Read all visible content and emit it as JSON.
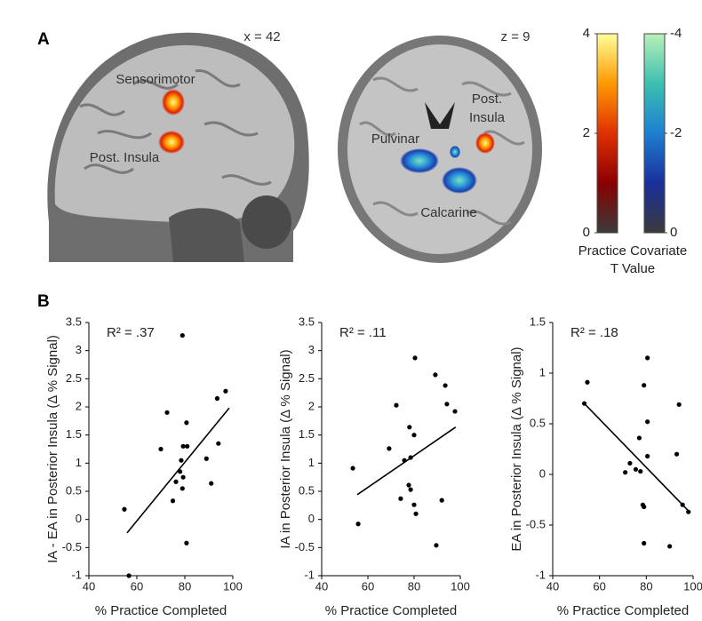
{
  "panel_labels": [
    "A",
    "B"
  ],
  "brain_annotations": {
    "sagittal_slice": "x = 42",
    "sensorimotor": "Sensorimotor",
    "post_insula_sagittal": "Post. Insula",
    "axial_slice": "z = 9",
    "post_insula_axial": [
      "Post.",
      "Insula"
    ],
    "pulvinar": "Pulvinar",
    "calcarine": "Calcarine"
  },
  "colorbar_label": [
    "Practice Covariate",
    "T Value"
  ],
  "chart_data": [
    {
      "type": "colorbar",
      "ylim": [
        0,
        4
      ],
      "yticks": [
        4,
        2,
        0
      ],
      "colors": [
        "#3a3a3a",
        "#8b0000",
        "#e03000",
        "#ff9900",
        "#ffff99"
      ]
    },
    {
      "type": "colorbar",
      "ylim": [
        0,
        -4
      ],
      "yticks": [
        -4,
        -2,
        0
      ],
      "colors": [
        "#3a3a3a",
        "#1a2f9a",
        "#1e7fd0",
        "#3cc0b0",
        "#b8f0b8"
      ]
    },
    {
      "type": "scatter",
      "annotation": "R² = .37",
      "xlabel": "% Practice Completed",
      "ylabel": "IA - EA in Posterior Insula (Δ % Signal)",
      "xlim": [
        40,
        100
      ],
      "xticks": [
        40,
        60,
        80,
        100
      ],
      "ylim": [
        -1,
        3.5
      ],
      "yticks": [
        -1,
        -0.5,
        0,
        0.5,
        1,
        1.5,
        2,
        2.5,
        3,
        3.5
      ],
      "color": "#000000",
      "x": [
        79,
        97,
        93.5,
        72.6,
        80.7,
        70,
        79.3,
        81,
        94,
        78.5,
        89,
        78,
        76.3,
        79.3,
        91,
        79,
        75,
        54.8,
        80.7,
        56.7
      ],
      "y": [
        3.27,
        2.28,
        2.15,
        1.9,
        1.72,
        1.25,
        1.3,
        1.3,
        1.35,
        1.05,
        1.08,
        0.85,
        0.67,
        0.75,
        0.64,
        0.55,
        0.33,
        0.18,
        -0.42,
        -1
      ],
      "trend": {
        "x": [
          55.9,
          98.5
        ],
        "y": [
          -0.24,
          1.98
        ]
      }
    },
    {
      "type": "scatter",
      "annotation": "R² = .11",
      "xlabel": "% Practice Completed",
      "ylabel": "IA in Posterior Insula (Δ % Signal)",
      "xlim": [
        40,
        100
      ],
      "xticks": [
        40,
        60,
        80,
        100
      ],
      "ylim": [
        -1,
        3.5
      ],
      "yticks": [
        -1,
        -0.5,
        0,
        0.5,
        1,
        1.5,
        2,
        2.5,
        3,
        3.5
      ],
      "color": "#000000",
      "x": [
        80.4,
        89.2,
        93.5,
        72.3,
        94.2,
        97.7,
        78,
        80,
        69.2,
        75.8,
        78.5,
        77.7,
        78.5,
        53.5,
        74.2,
        92,
        80,
        80.8,
        55.8,
        89.6
      ],
      "y": [
        2.87,
        2.57,
        2.38,
        2.03,
        2.05,
        1.92,
        1.64,
        1.5,
        1.26,
        1.05,
        1.1,
        0.61,
        0.53,
        0.91,
        0.37,
        0.34,
        0.26,
        0.1,
        -0.08,
        -0.46
      ],
      "trend": {
        "x": [
          55.4,
          98
        ],
        "y": [
          0.44,
          1.64
        ]
      }
    },
    {
      "type": "scatter",
      "annotation": "R² = .18",
      "xlabel": "% Practice Completed",
      "ylabel": "EA in Posterior Insula (Δ % Signal)",
      "xlim": [
        40,
        100
      ],
      "xticks": [
        40,
        60,
        80,
        100
      ],
      "ylim": [
        -1,
        1.5
      ],
      "yticks": [
        -1,
        -0.5,
        0,
        0.5,
        1,
        1.5
      ],
      "color": "#000000",
      "x": [
        54.8,
        80.5,
        79,
        94,
        80.5,
        77,
        93,
        80.5,
        73,
        75.5,
        71,
        77.5,
        95.5,
        78.5,
        79,
        79,
        90,
        98,
        53.5
      ],
      "y": [
        0.91,
        1.15,
        0.88,
        0.69,
        0.52,
        0.36,
        0.2,
        0.18,
        0.11,
        0.05,
        0.02,
        0.03,
        -0.3,
        -0.3,
        -0.32,
        -0.68,
        -0.71,
        -0.37,
        0.7
      ],
      "trend": {
        "x": [
          53.5,
          98
        ],
        "y": [
          0.7,
          -0.36
        ]
      }
    }
  ]
}
